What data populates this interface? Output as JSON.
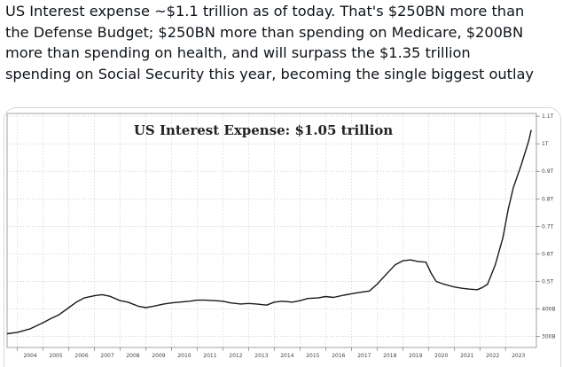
{
  "tweet": {
    "lines": [
      "US Interest expense ~$1.1 trillion as of today. That's $250BN more than",
      "the Defense Budget; $250BN more than spending on Medicare, $200BN",
      "more than spending on health, and will surpass the $1.35 trillion",
      "spending on Social Security this year, becoming the single biggest outlay"
    ]
  },
  "chart_data": {
    "type": "line",
    "title": "US Interest Expense: $1.05 trillion",
    "xlabel": "",
    "ylabel": "",
    "grid": true,
    "x_tick_labels": [
      "2004",
      "2005",
      "2006",
      "2007",
      "2008",
      "2009",
      "2010",
      "2011",
      "2012",
      "2013",
      "2014",
      "2015",
      "2016",
      "2017",
      "2018",
      "2019",
      "2020",
      "2021",
      "2022",
      "2023"
    ],
    "y_tick_labels": [
      "300B",
      "400B",
      "0.5T",
      "0.6T",
      "0.7T",
      "0.8T",
      "0.9T",
      "1T",
      "1.1T"
    ],
    "y_tick_values": [
      300,
      400,
      500,
      600,
      700,
      800,
      900,
      1000,
      1100
    ],
    "ylim": [
      260,
      1110
    ],
    "xlim": [
      2003.6,
      2024.2
    ],
    "series": [
      {
        "values_x": [
          2003.6,
          2004.0,
          2004.5,
          2005.0,
          2005.3,
          2005.6,
          2006.0,
          2006.3,
          2006.6,
          2007.0,
          2007.3,
          2007.6,
          2008.0,
          2008.3,
          2008.7,
          2009.0,
          2009.3,
          2009.7,
          2010.0,
          2010.3,
          2010.7,
          2011.0,
          2011.3,
          2011.7,
          2012.0,
          2012.3,
          2012.7,
          2013.0,
          2013.3,
          2013.7,
          2014.0,
          2014.3,
          2014.7,
          2015.0,
          2015.3,
          2015.7,
          2016.0,
          2016.3,
          2016.7,
          2017.0,
          2017.3,
          2017.7,
          2018.0,
          2018.3,
          2018.7,
          2019.0,
          2019.3,
          2019.6,
          2019.9,
          2020.1,
          2020.3,
          2020.6,
          2021.0,
          2021.3,
          2021.6,
          2021.9,
          2022.1,
          2022.3,
          2022.6,
          2022.9,
          2023.1,
          2023.3,
          2023.6,
          2023.9,
          2024.0
        ],
        "values_y": [
          310,
          315,
          328,
          350,
          365,
          378,
          405,
          425,
          440,
          448,
          452,
          446,
          430,
          425,
          410,
          405,
          410,
          418,
          422,
          425,
          428,
          432,
          432,
          430,
          428,
          422,
          418,
          420,
          418,
          414,
          425,
          428,
          425,
          430,
          438,
          440,
          445,
          442,
          450,
          455,
          460,
          465,
          490,
          520,
          560,
          575,
          578,
          572,
          570,
          530,
          500,
          490,
          480,
          475,
          472,
          470,
          478,
          490,
          560,
          660,
          760,
          840,
          920,
          1010,
          1050
        ]
      }
    ]
  }
}
